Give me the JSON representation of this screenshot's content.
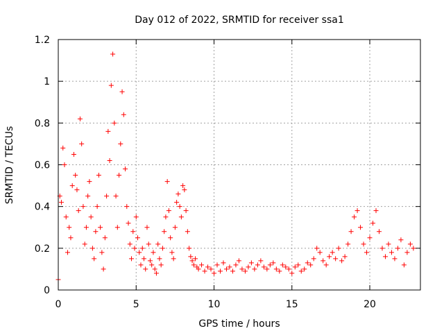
{
  "chart_data": {
    "type": "scatter",
    "title": "Day 012 of 2022, SRMTID for receiver ssa1",
    "xlabel": "GPS time / hours",
    "ylabel": "SRMTID / TECUs",
    "xlim": [
      0,
      23.25
    ],
    "ylim": [
      0,
      1.2
    ],
    "xticks": [
      0,
      5,
      10,
      15,
      20
    ],
    "xtick_labels": [
      "0",
      "5",
      "10",
      "15",
      "20"
    ],
    "yticks": [
      0,
      0.2,
      0.4,
      0.6,
      0.8,
      1,
      1.2
    ],
    "ytick_labels": [
      "0",
      "0.2",
      "0.4",
      "0.6",
      "0.8",
      "1",
      "1.2"
    ],
    "grid": true,
    "marker": "+",
    "series": [
      {
        "name": "SRMTID",
        "color": "#ff0000",
        "x": [
          0.0,
          0.1,
          0.2,
          0.3,
          0.4,
          0.5,
          0.6,
          0.7,
          0.8,
          0.9,
          1.0,
          1.1,
          1.2,
          1.3,
          1.4,
          1.5,
          1.6,
          1.7,
          1.8,
          1.9,
          2.0,
          2.1,
          2.2,
          2.3,
          2.4,
          2.5,
          2.6,
          2.7,
          2.8,
          2.9,
          3.0,
          3.1,
          3.2,
          3.3,
          3.4,
          3.5,
          3.6,
          3.7,
          3.8,
          3.9,
          4.0,
          4.1,
          4.2,
          4.3,
          4.4,
          4.5,
          4.6,
          4.7,
          4.8,
          4.9,
          5.0,
          5.1,
          5.2,
          5.3,
          5.4,
          5.5,
          5.6,
          5.7,
          5.8,
          5.9,
          6.0,
          6.1,
          6.2,
          6.3,
          6.4,
          6.5,
          6.6,
          6.7,
          6.8,
          6.9,
          7.0,
          7.1,
          7.2,
          7.3,
          7.4,
          7.5,
          7.6,
          7.7,
          7.8,
          7.9,
          8.0,
          8.1,
          8.2,
          8.3,
          8.4,
          8.5,
          8.6,
          8.7,
          8.8,
          8.9,
          9.0,
          9.2,
          9.4,
          9.6,
          9.8,
          10.0,
          10.2,
          10.4,
          10.6,
          10.8,
          11.0,
          11.2,
          11.4,
          11.6,
          11.8,
          12.0,
          12.2,
          12.4,
          12.6,
          12.8,
          13.0,
          13.2,
          13.4,
          13.6,
          13.8,
          14.0,
          14.2,
          14.4,
          14.6,
          14.8,
          15.0,
          15.2,
          15.4,
          15.6,
          15.8,
          16.0,
          16.2,
          16.4,
          16.6,
          16.8,
          17.0,
          17.2,
          17.4,
          17.6,
          17.8,
          18.0,
          18.2,
          18.4,
          18.6,
          18.8,
          19.0,
          19.2,
          19.4,
          19.6,
          19.8,
          20.0,
          20.2,
          20.4,
          20.6,
          20.8,
          21.0,
          21.2,
          21.4,
          21.6,
          21.8,
          22.0,
          22.2,
          22.4,
          22.6,
          22.8
        ],
        "y": [
          0.05,
          0.45,
          0.42,
          0.68,
          0.6,
          0.35,
          0.18,
          0.3,
          0.25,
          0.5,
          0.65,
          0.55,
          0.48,
          0.38,
          0.82,
          0.7,
          0.4,
          0.22,
          0.3,
          0.45,
          0.52,
          0.35,
          0.2,
          0.15,
          0.28,
          0.4,
          0.55,
          0.3,
          0.18,
          0.1,
          0.25,
          0.45,
          0.76,
          0.62,
          0.98,
          1.13,
          0.8,
          0.45,
          0.3,
          0.55,
          0.7,
          0.95,
          0.84,
          0.58,
          0.4,
          0.32,
          0.22,
          0.15,
          0.28,
          0.2,
          0.35,
          0.25,
          0.18,
          0.12,
          0.2,
          0.15,
          0.1,
          0.3,
          0.22,
          0.14,
          0.12,
          0.18,
          0.1,
          0.08,
          0.22,
          0.15,
          0.12,
          0.2,
          0.28,
          0.35,
          0.52,
          0.38,
          0.25,
          0.18,
          0.15,
          0.3,
          0.42,
          0.46,
          0.4,
          0.35,
          0.5,
          0.48,
          0.38,
          0.28,
          0.2,
          0.16,
          0.14,
          0.12,
          0.15,
          0.11,
          0.1,
          0.12,
          0.09,
          0.11,
          0.1,
          0.08,
          0.12,
          0.09,
          0.13,
          0.1,
          0.11,
          0.09,
          0.12,
          0.14,
          0.1,
          0.09,
          0.11,
          0.13,
          0.1,
          0.12,
          0.14,
          0.11,
          0.1,
          0.12,
          0.13,
          0.1,
          0.09,
          0.12,
          0.11,
          0.1,
          0.08,
          0.11,
          0.12,
          0.09,
          0.1,
          0.13,
          0.12,
          0.15,
          0.2,
          0.18,
          0.14,
          0.12,
          0.16,
          0.18,
          0.15,
          0.2,
          0.14,
          0.16,
          0.22,
          0.28,
          0.35,
          0.38,
          0.3,
          0.22,
          0.18,
          0.25,
          0.32,
          0.38,
          0.28,
          0.2,
          0.16,
          0.22,
          0.18,
          0.15,
          0.2,
          0.24,
          0.12,
          0.18,
          0.22,
          0.2
        ]
      }
    ]
  }
}
